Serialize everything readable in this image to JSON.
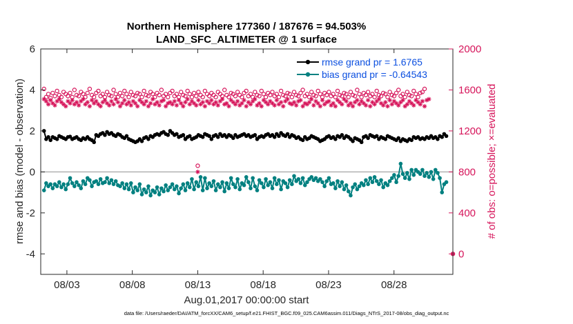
{
  "chart_data": {
    "type": "line",
    "title": "Northern Hemisphere 177360 / 187676 = 94.503%",
    "subtitle": "LAND_SFC_ALTIMETER @ 1 surface",
    "xlabel": "Aug.01,2017 00:00:00 start",
    "ylabel": "rmse and bias (model - observation)",
    "ylabel_right": "# of obs: o=possible; ×=evaluated",
    "xlim": [
      0,
      31.5
    ],
    "ylim": [
      -5,
      6
    ],
    "ylim_right": [
      -200,
      2000
    ],
    "x_ticks": [
      2,
      7,
      12,
      17,
      22,
      27
    ],
    "x_tick_labels": [
      "08/03",
      "08/08",
      "08/13",
      "08/18",
      "08/23",
      "08/28"
    ],
    "y_ticks": [
      -4,
      -2,
      0,
      2,
      4,
      6
    ],
    "y_tick_labels": [
      "-4",
      "-2",
      "0",
      "2",
      "4",
      "6"
    ],
    "y_right_ticks": [
      0,
      400,
      800,
      1200,
      1600,
      2000
    ],
    "y_right_tick_labels": [
      "0",
      "400",
      "800",
      "1200",
      "1600",
      "2000"
    ],
    "zero_line": 0,
    "legend": [
      "rmse grand pr = 1.6765",
      "bias grand pr = -0.64543"
    ],
    "colors": {
      "rmse": "#000000",
      "bias": "#008080",
      "obs": "#d6145a",
      "legend_text": "#0b4fe0",
      "zero": "#b0b0b0"
    },
    "series": [
      {
        "name": "rmse grand pr = 1.6765",
        "axis": "left",
        "values": [
          2.0,
          1.6,
          1.7,
          1.55,
          1.7,
          1.65,
          1.6,
          1.75,
          1.7,
          1.65,
          1.6,
          1.7,
          1.72,
          1.6,
          1.65,
          1.7,
          1.6,
          1.55,
          1.65,
          1.6,
          1.7,
          1.6,
          1.55,
          1.45,
          1.8,
          1.75,
          1.85,
          1.9,
          1.8,
          1.95,
          1.85,
          1.9,
          1.8,
          1.75,
          1.85,
          1.8,
          1.7,
          1.65,
          1.75,
          1.6,
          1.55,
          1.5,
          1.45,
          1.5,
          1.6,
          1.5,
          1.65,
          1.7,
          1.6,
          1.75,
          1.7,
          1.8,
          1.85,
          1.8,
          1.9,
          1.95,
          1.85,
          1.8,
          2.0,
          1.9,
          1.8,
          1.85,
          1.7,
          1.75,
          1.8,
          1.6,
          1.7,
          1.75,
          1.6,
          1.65,
          1.7,
          1.8,
          1.75,
          1.7,
          1.85,
          1.8,
          1.75,
          1.6,
          1.75,
          1.8,
          1.7,
          1.85,
          1.75,
          1.8,
          1.7,
          1.8,
          1.75,
          1.65,
          1.8,
          1.7,
          1.75,
          1.8,
          1.85,
          1.75,
          1.8,
          1.7,
          1.75,
          1.8,
          1.6,
          1.7,
          1.75,
          1.7,
          1.8,
          1.85,
          1.75,
          1.8,
          1.7,
          1.85,
          1.75,
          1.9,
          1.8,
          1.75,
          1.85,
          1.7,
          1.8,
          1.75,
          1.65,
          1.7,
          1.6,
          1.55,
          1.7,
          1.6,
          1.65,
          1.75,
          1.7,
          1.65,
          1.6,
          1.5,
          1.55,
          1.6,
          1.7,
          1.75,
          1.65,
          1.7,
          1.6,
          1.75,
          1.7,
          1.8,
          1.65,
          1.75,
          1.7,
          1.6,
          1.5,
          1.65,
          1.6,
          1.55,
          1.45,
          1.7,
          1.75,
          1.65,
          1.8,
          1.75,
          1.7,
          1.75,
          1.6,
          1.7,
          1.65,
          1.6,
          1.75,
          1.7,
          1.65,
          1.6,
          1.55,
          1.65,
          1.5,
          1.6,
          1.55,
          1.5,
          1.6,
          1.55,
          1.7,
          1.65,
          1.7,
          1.6,
          1.65,
          1.6,
          1.7,
          1.65,
          1.75,
          1.65,
          1.7,
          1.6,
          1.75,
          1.7,
          1.85,
          1.75
        ]
      },
      {
        "name": "bias grand pr = -0.64543",
        "axis": "left",
        "values": [
          -0.9,
          -0.55,
          -0.7,
          -0.6,
          -0.8,
          -0.6,
          -0.7,
          -0.5,
          -0.75,
          -0.6,
          -0.85,
          -0.6,
          -0.3,
          -0.55,
          -0.7,
          -0.5,
          -0.65,
          -0.8,
          -0.45,
          -0.6,
          -0.3,
          -0.4,
          -0.7,
          -0.5,
          -0.45,
          -0.6,
          -0.35,
          -0.55,
          -0.5,
          -0.3,
          -0.55,
          -0.4,
          -0.6,
          -0.45,
          -0.65,
          -0.7,
          -0.55,
          -0.8,
          -0.6,
          -0.85,
          -0.55,
          -1.0,
          -0.75,
          -0.9,
          -0.6,
          -1.1,
          -0.85,
          -1.0,
          -0.7,
          -1.15,
          -0.9,
          -1.0,
          -0.75,
          -1.1,
          -0.8,
          -0.95,
          -0.65,
          -0.9,
          -0.75,
          -0.6,
          -0.85,
          -0.7,
          -1.05,
          -0.8,
          -0.6,
          -0.9,
          -0.55,
          -0.75,
          -0.35,
          -0.85,
          -0.5,
          -0.7,
          -0.25,
          -0.9,
          -0.3,
          -0.8,
          -0.55,
          -0.7,
          -0.45,
          -0.9,
          -0.6,
          -0.75,
          -0.5,
          -0.95,
          -0.55,
          -0.8,
          -0.3,
          -0.6,
          -0.75,
          -0.35,
          -0.85,
          -0.55,
          -0.65,
          -0.25,
          -0.5,
          -0.8,
          -0.3,
          -0.7,
          -0.9,
          -0.4,
          -0.55,
          -0.75,
          -0.35,
          -0.65,
          -0.5,
          -0.8,
          -0.3,
          -0.6,
          -0.4,
          -0.85,
          -0.45,
          -0.55,
          -0.75,
          -0.4,
          -0.6,
          -0.2,
          -0.45,
          -0.35,
          -0.55,
          -0.3,
          -0.65,
          -0.5,
          -0.35,
          -0.25,
          -0.4,
          -0.3,
          -0.45,
          -0.35,
          -0.5,
          -0.7,
          -0.45,
          -0.3,
          -0.6,
          -0.55,
          -0.8,
          -0.45,
          -0.7,
          -0.5,
          -0.85,
          -0.65,
          -0.95,
          -1.15,
          -0.75,
          -0.6,
          -0.85,
          -0.7,
          -0.55,
          -0.65,
          -0.4,
          -0.6,
          -0.3,
          -0.5,
          -0.25,
          -0.45,
          -0.6,
          -0.4,
          -0.75,
          -0.55,
          -0.65,
          -0.45,
          -0.3,
          -0.15,
          -0.5,
          -0.2,
          0.4,
          -0.1,
          -0.3,
          -0.05,
          -0.35,
          0.1,
          -0.15,
          0.1,
          0.0,
          -0.1,
          0.1,
          -0.2,
          -0.05,
          -0.25,
          0.0,
          -0.35,
          0.1,
          -0.05,
          -0.3,
          -1.0,
          -0.6,
          -0.5
        ]
      },
      {
        "name": "possible obs (o)",
        "axis": "right",
        "values": [
          1610,
          1530,
          1560,
          1520,
          1570,
          1540,
          1590,
          1550,
          1530,
          1580,
          1560,
          1540,
          1570,
          1530,
          1600,
          1550,
          1540,
          1580,
          1560,
          1530,
          1570,
          1610,
          1550,
          1530,
          1570,
          1590,
          1540,
          1560,
          1530,
          1580,
          1550,
          1540,
          1600,
          1560,
          1530,
          1570,
          1540,
          1590,
          1560,
          1530,
          1580,
          1550,
          1540,
          1570,
          1560,
          1530,
          1590,
          1550,
          1540,
          1580,
          1560,
          1530,
          1570,
          1550,
          1600,
          1540,
          1560,
          1530,
          1570,
          1590,
          1540,
          1560,
          1530,
          1580,
          1550,
          1540,
          1590,
          1560,
          1530,
          1570,
          1540,
          1580,
          1550,
          1530,
          1590,
          1560,
          1540,
          1570,
          1550,
          1530,
          1580,
          1560,
          1540,
          1600,
          1550,
          1530,
          1570,
          1560,
          1540,
          1580,
          1550,
          1530,
          1570,
          1590,
          1540,
          1560,
          1530,
          1580,
          1550,
          1540,
          1590,
          1560,
          1530,
          1570,
          1550,
          1580,
          1540,
          1560,
          1530,
          1590,
          1550,
          1540,
          1570,
          1560,
          1530,
          1580,
          1550,
          1540,
          1570,
          1600,
          1540,
          1560,
          1530,
          1580,
          1550,
          1540,
          1590,
          1560,
          1530,
          1570,
          1550,
          1580,
          1540,
          1560,
          1530,
          1590,
          1550,
          1540,
          1570,
          1560,
          1530,
          1580,
          1550,
          1540,
          1600,
          1560,
          1530,
          1570,
          1550,
          1580,
          1540,
          1560,
          1530,
          1590,
          1550,
          1540,
          1570,
          1560,
          1530,
          1580,
          1550,
          1540,
          1570,
          1600,
          1540,
          1560,
          1530,
          1580,
          1550,
          1540,
          1590,
          1560,
          1530,
          1570,
          1580,
          1610
        ]
      },
      {
        "name": "evaluated obs (×)",
        "axis": "right",
        "values": [
          1510,
          1490,
          1460,
          1500,
          1470,
          1450,
          1490,
          1510,
          1480,
          1460,
          1440,
          1490,
          1470,
          1500,
          1460,
          1480,
          1450,
          1490,
          1510,
          1460,
          1480,
          1440,
          1500,
          1470,
          1490,
          1460,
          1440,
          1480,
          1500,
          1470,
          1450,
          1490,
          1460,
          1510,
          1480,
          1440,
          1470,
          1500,
          1460,
          1480,
          1450,
          1490,
          1470,
          1440,
          1500,
          1480,
          1460,
          1490,
          1440,
          1470,
          1510,
          1460,
          1480,
          1450,
          1490,
          1500,
          1440,
          1470,
          1480,
          1460,
          1490,
          1450,
          1500,
          1470,
          1440,
          1480,
          1510,
          1460,
          1490,
          1470,
          1450,
          1500,
          1460,
          1480,
          1440,
          1490,
          1470,
          1500,
          1460,
          1480,
          1450,
          1490,
          1510,
          1460,
          1470,
          1440,
          1500,
          1480,
          1460,
          1490,
          1450,
          1470,
          1500,
          1440,
          1480,
          1460,
          1490,
          1510,
          1450,
          1470,
          1440,
          1500,
          1480,
          1460,
          1490,
          1470,
          1450,
          1500,
          1460,
          1480,
          1440,
          1490,
          1510,
          1470,
          1460,
          1480,
          1450,
          1490,
          1500,
          1440,
          1470,
          1460,
          1480,
          1510,
          1450,
          1490,
          1470,
          1440,
          1500,
          1460,
          1480,
          1490,
          1450,
          1470,
          1440,
          1500,
          1480,
          1460,
          1510,
          1490,
          1450,
          1470,
          1440,
          1480,
          1500,
          1460,
          1490,
          1470,
          1450,
          1500,
          1440,
          1480,
          1460,
          1490,
          1510,
          1470,
          1450,
          1480,
          1440,
          1500,
          1460,
          1490,
          1470,
          1450,
          1480,
          1500,
          1440,
          1460,
          1490,
          1470,
          1450,
          1500,
          1480,
          1460,
          1490,
          1440,
          1500,
          1510
        ]
      },
      {
        "name": "isolated markers",
        "axis": "right",
        "points": [
          {
            "x": 12.0,
            "y": 860,
            "series": "possible obs (o)"
          },
          {
            "x": 12.0,
            "y": 800,
            "series": "evaluated obs (×)"
          },
          {
            "x": 31.5,
            "y": 0,
            "series": "possible obs (o)"
          },
          {
            "x": 31.5,
            "y": 0,
            "series": "evaluated obs (×)"
          }
        ]
      }
    ]
  },
  "footer": "data file: /Users/raeder/DAI/ATM_forcXX/CAM6_setup/f.e21.FHIST_BGC.f09_025.CAM6assim.011/Diags_NTrS_2017-08/obs_diag_output.nc"
}
